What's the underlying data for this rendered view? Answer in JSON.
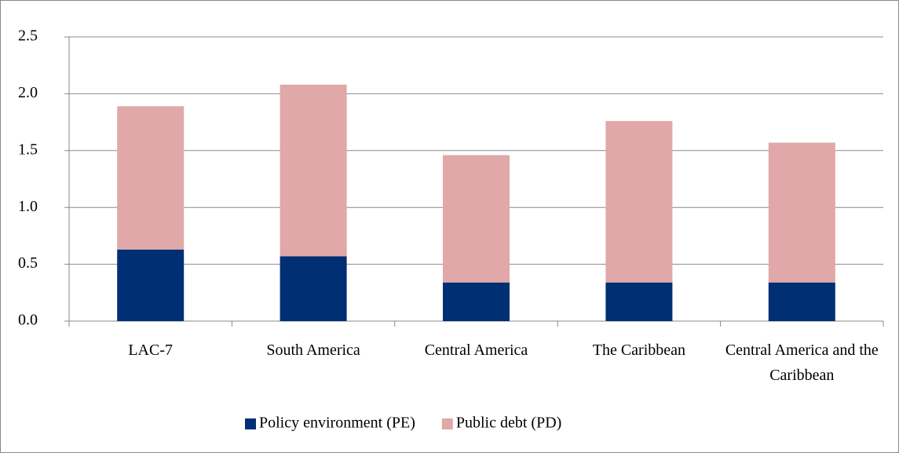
{
  "chart_data": {
    "type": "stacked-bar",
    "categories": [
      "LAC-7",
      "South America",
      "Central America",
      "The Caribbean",
      "Central America and the Caribbean"
    ],
    "series": [
      {
        "name": "Policy environment (PE)",
        "color": "#002f74",
        "values": [
          0.63,
          0.57,
          0.34,
          0.34,
          0.34
        ]
      },
      {
        "name": "Public debt (PD)",
        "color": "#e0a8a8",
        "values": [
          1.26,
          1.51,
          1.12,
          1.42,
          1.23
        ]
      }
    ],
    "ylim": [
      0,
      2.5
    ],
    "yticks": [
      {
        "value": 0,
        "label": "0.0"
      },
      {
        "value": 0.5,
        "label": "0.5"
      },
      {
        "value": 1,
        "label": "1.0"
      },
      {
        "value": 1.5,
        "label": "1.5"
      },
      {
        "value": 2,
        "label": "2.0"
      },
      {
        "value": 2.5,
        "label": "2.5"
      }
    ],
    "grid": true,
    "legend": "bottom"
  }
}
